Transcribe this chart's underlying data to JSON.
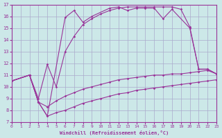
{
  "xlabel": "Windchill (Refroidissement éolien,°C)",
  "bg_color": "#cce8e8",
  "grid_color": "#aaaacc",
  "line_color": "#993399",
  "xlim": [
    0,
    23
  ],
  "ylim": [
    7,
    17
  ],
  "xticks": [
    0,
    1,
    2,
    3,
    4,
    5,
    6,
    7,
    8,
    9,
    10,
    11,
    12,
    13,
    14,
    15,
    16,
    17,
    18,
    19,
    20,
    21,
    22,
    23
  ],
  "yticks": [
    7,
    8,
    9,
    10,
    11,
    12,
    13,
    14,
    15,
    16,
    17
  ],
  "curve1_x": [
    0,
    2,
    3,
    4,
    6,
    7,
    8,
    9,
    11,
    12,
    13,
    14,
    15,
    16,
    17,
    18,
    20,
    21,
    22,
    23
  ],
  "curve1_y": [
    10.5,
    11.0,
    8.7,
    7.5,
    15.9,
    16.5,
    15.5,
    16.0,
    16.7,
    16.8,
    16.5,
    16.7,
    16.7,
    16.7,
    15.8,
    16.6,
    15.0,
    11.5,
    11.5,
    11.1
  ],
  "curve2_x": [
    0,
    2,
    3,
    4,
    5,
    6,
    7,
    8,
    9,
    10,
    11,
    12,
    13,
    14,
    15,
    16,
    17,
    18,
    19,
    20,
    21,
    22,
    23
  ],
  "curve2_y": [
    10.5,
    11.0,
    9.0,
    11.9,
    10.0,
    13.0,
    14.3,
    15.3,
    15.8,
    16.2,
    16.5,
    16.7,
    16.8,
    16.8,
    16.8,
    16.8,
    16.8,
    16.8,
    16.6,
    15.1,
    11.5,
    11.5,
    11.1
  ],
  "curve3_x": [
    0,
    2,
    3,
    4,
    5,
    6,
    7,
    8,
    9,
    10,
    11,
    12,
    13,
    14,
    15,
    16,
    17,
    18,
    19,
    20,
    21,
    22,
    23
  ],
  "curve3_y": [
    10.5,
    11.0,
    8.7,
    8.3,
    8.8,
    9.2,
    9.5,
    9.8,
    10.0,
    10.2,
    10.4,
    10.6,
    10.7,
    10.8,
    10.9,
    11.0,
    11.0,
    11.1,
    11.1,
    11.2,
    11.3,
    11.4,
    11.1
  ],
  "curve4_x": [
    0,
    2,
    3,
    4,
    5,
    6,
    7,
    8,
    9,
    10,
    11,
    12,
    13,
    14,
    15,
    16,
    17,
    18,
    19,
    20,
    21,
    22,
    23
  ],
  "curve4_y": [
    10.5,
    11.0,
    8.7,
    7.5,
    7.8,
    8.0,
    8.3,
    8.6,
    8.8,
    9.0,
    9.2,
    9.4,
    9.5,
    9.7,
    9.8,
    9.9,
    10.0,
    10.1,
    10.2,
    10.3,
    10.4,
    10.5,
    10.6
  ]
}
